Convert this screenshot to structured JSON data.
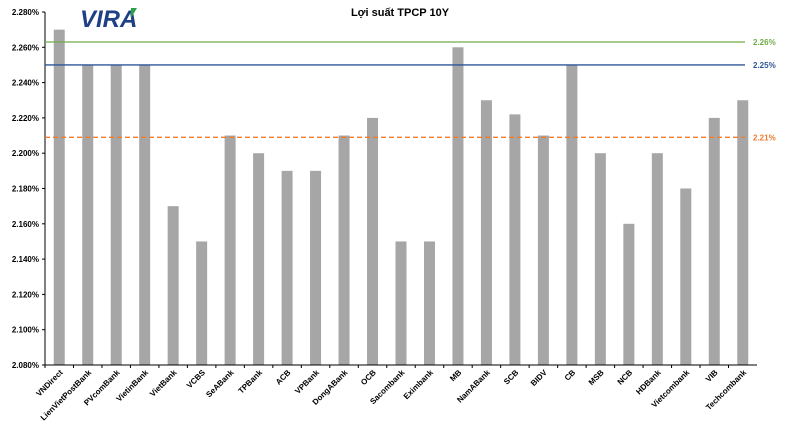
{
  "logo": {
    "text": "VIRA",
    "color": "#1f3f86",
    "accent_color": "#2ba34a"
  },
  "chart_data": {
    "type": "bar",
    "title": "Lợi suất TPCP 10Y",
    "xlabel": "",
    "ylabel": "",
    "ylim": [
      2.08,
      2.28
    ],
    "y_ticks": [
      "2.080%",
      "2.100%",
      "2.120%",
      "2.140%",
      "2.160%",
      "2.180%",
      "2.200%",
      "2.220%",
      "2.240%",
      "2.260%",
      "2.280%"
    ],
    "categories": [
      "VNDirect",
      "LienVietPostBank",
      "PVcomBank",
      "VietinBank",
      "VietBank",
      "VCBS",
      "SeABank",
      "TPBank",
      "ACB",
      "VPBank",
      "DongABank",
      "OCB",
      "Sacombank",
      "Eximbank",
      "MB",
      "NamABank",
      "SCB",
      "BIDV",
      "CB",
      "MSB",
      "NCB",
      "HDBank",
      "Vietcombank",
      "VIB",
      "Techcombank"
    ],
    "values": [
      2.27,
      2.25,
      2.25,
      2.25,
      2.17,
      2.15,
      2.21,
      2.2,
      2.19,
      2.19,
      2.21,
      2.22,
      2.15,
      2.15,
      2.26,
      2.23,
      2.222,
      2.21,
      2.25,
      2.2,
      2.16,
      2.2,
      2.18,
      2.22,
      2.23
    ],
    "bar_color": "#a6a6a6",
    "grid": false,
    "reference_lines": [
      {
        "label": "2.26%",
        "value": 2.263,
        "color": "#70ad47",
        "style": "solid"
      },
      {
        "label": "2.25%",
        "value": 2.25,
        "color": "#2f5597",
        "style": "solid"
      },
      {
        "label": "2.21%",
        "value": 2.209,
        "color": "#ed7d31",
        "style": "dashed"
      }
    ]
  }
}
